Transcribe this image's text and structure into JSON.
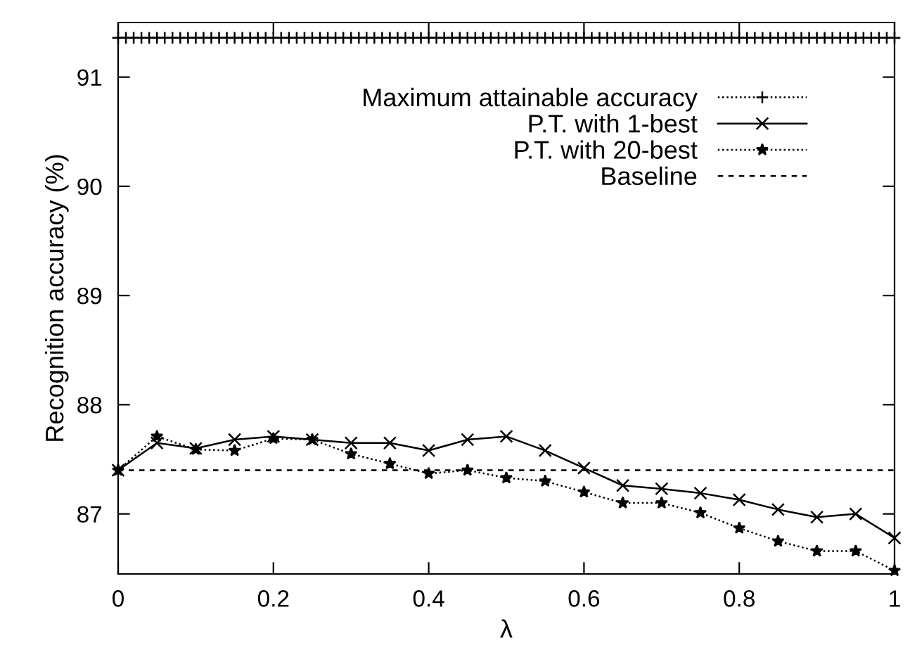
{
  "chart_data": {
    "type": "line",
    "xlabel": "λ",
    "ylabel": "Recognition accuracy (%)",
    "xlim": [
      0,
      1
    ],
    "ylim": [
      86.45,
      91.5
    ],
    "xticks": [
      0,
      0.2,
      0.4,
      0.6,
      0.8,
      1
    ],
    "yticks": [
      87,
      88,
      89,
      90,
      91
    ],
    "grid": false,
    "legend": "top right",
    "series": [
      {
        "name": "Maximum attainable accuracy",
        "color": "#000000",
        "marker": "plus",
        "line_style": "dotted",
        "x": [
          0,
          0.01,
          0.02,
          0.03,
          0.04,
          0.05,
          0.06,
          0.07,
          0.08,
          0.09,
          0.1,
          0.11,
          0.12,
          0.13,
          0.14,
          0.15,
          0.16,
          0.17,
          0.18,
          0.19,
          0.2,
          0.21,
          0.22,
          0.23,
          0.24,
          0.25,
          0.26,
          0.27,
          0.28,
          0.29,
          0.3,
          0.31,
          0.32,
          0.33,
          0.34,
          0.35,
          0.36,
          0.37,
          0.38,
          0.39,
          0.4,
          0.41,
          0.42,
          0.43,
          0.44,
          0.45,
          0.46,
          0.47,
          0.48,
          0.49,
          0.5,
          0.51,
          0.52,
          0.53,
          0.54,
          0.55,
          0.56,
          0.57,
          0.58,
          0.59,
          0.6,
          0.61,
          0.62,
          0.63,
          0.64,
          0.65,
          0.66,
          0.67,
          0.68,
          0.69,
          0.7,
          0.71,
          0.72,
          0.73,
          0.74,
          0.75,
          0.76,
          0.77,
          0.78,
          0.79,
          0.8,
          0.81,
          0.82,
          0.83,
          0.84,
          0.85,
          0.86,
          0.87,
          0.88,
          0.89,
          0.9,
          0.91,
          0.92,
          0.93,
          0.94,
          0.95,
          0.96,
          0.97,
          0.98,
          0.99,
          1
        ],
        "values": [
          91.36,
          91.36,
          91.36,
          91.36,
          91.36,
          91.36,
          91.36,
          91.36,
          91.36,
          91.36,
          91.36,
          91.36,
          91.36,
          91.36,
          91.36,
          91.36,
          91.36,
          91.36,
          91.36,
          91.36,
          91.36,
          91.36,
          91.36,
          91.36,
          91.36,
          91.36,
          91.36,
          91.36,
          91.36,
          91.36,
          91.36,
          91.36,
          91.36,
          91.36,
          91.36,
          91.36,
          91.36,
          91.36,
          91.36,
          91.36,
          91.36,
          91.36,
          91.36,
          91.36,
          91.36,
          91.36,
          91.36,
          91.36,
          91.36,
          91.36,
          91.36,
          91.36,
          91.36,
          91.36,
          91.36,
          91.36,
          91.36,
          91.36,
          91.36,
          91.36,
          91.36,
          91.36,
          91.36,
          91.36,
          91.36,
          91.36,
          91.36,
          91.36,
          91.36,
          91.36,
          91.36,
          91.36,
          91.36,
          91.36,
          91.36,
          91.36,
          91.36,
          91.36,
          91.36,
          91.36,
          91.36,
          91.36,
          91.36,
          91.36,
          91.36,
          91.36,
          91.36,
          91.36,
          91.36,
          91.36,
          91.36,
          91.36,
          91.36,
          91.36,
          91.36,
          91.36,
          91.36,
          91.36,
          91.36,
          91.36,
          91.36
        ]
      },
      {
        "name": "P.T. with 1-best",
        "color": "#000000",
        "marker": "cross",
        "line_style": "solid",
        "x": [
          0,
          0.05,
          0.1,
          0.15,
          0.2,
          0.25,
          0.3,
          0.35,
          0.4,
          0.45,
          0.5,
          0.55,
          0.6,
          0.65,
          0.7,
          0.75,
          0.8,
          0.85,
          0.9,
          0.95,
          1
        ],
        "values": [
          87.4,
          87.65,
          87.6,
          87.68,
          87.71,
          87.68,
          87.65,
          87.65,
          87.58,
          87.68,
          87.71,
          87.58,
          87.42,
          87.26,
          87.23,
          87.19,
          87.13,
          87.04,
          86.97,
          87.0,
          86.78
        ]
      },
      {
        "name": "P.T. with 20-best",
        "color": "#000000",
        "marker": "star",
        "line_style": "dotted",
        "x": [
          0,
          0.05,
          0.1,
          0.15,
          0.2,
          0.25,
          0.3,
          0.35,
          0.4,
          0.45,
          0.5,
          0.55,
          0.6,
          0.65,
          0.7,
          0.75,
          0.8,
          0.85,
          0.9,
          0.95,
          1
        ],
        "values": [
          87.4,
          87.71,
          87.59,
          87.58,
          87.69,
          87.68,
          87.55,
          87.46,
          87.37,
          87.4,
          87.33,
          87.3,
          87.2,
          87.1,
          87.1,
          87.01,
          86.87,
          86.75,
          86.66,
          86.66,
          86.48
        ]
      },
      {
        "name": "Baseline",
        "color": "#000000",
        "marker": "none",
        "line_style": "dashed",
        "x": [
          0,
          1
        ],
        "values": [
          87.4,
          87.4
        ]
      }
    ]
  }
}
